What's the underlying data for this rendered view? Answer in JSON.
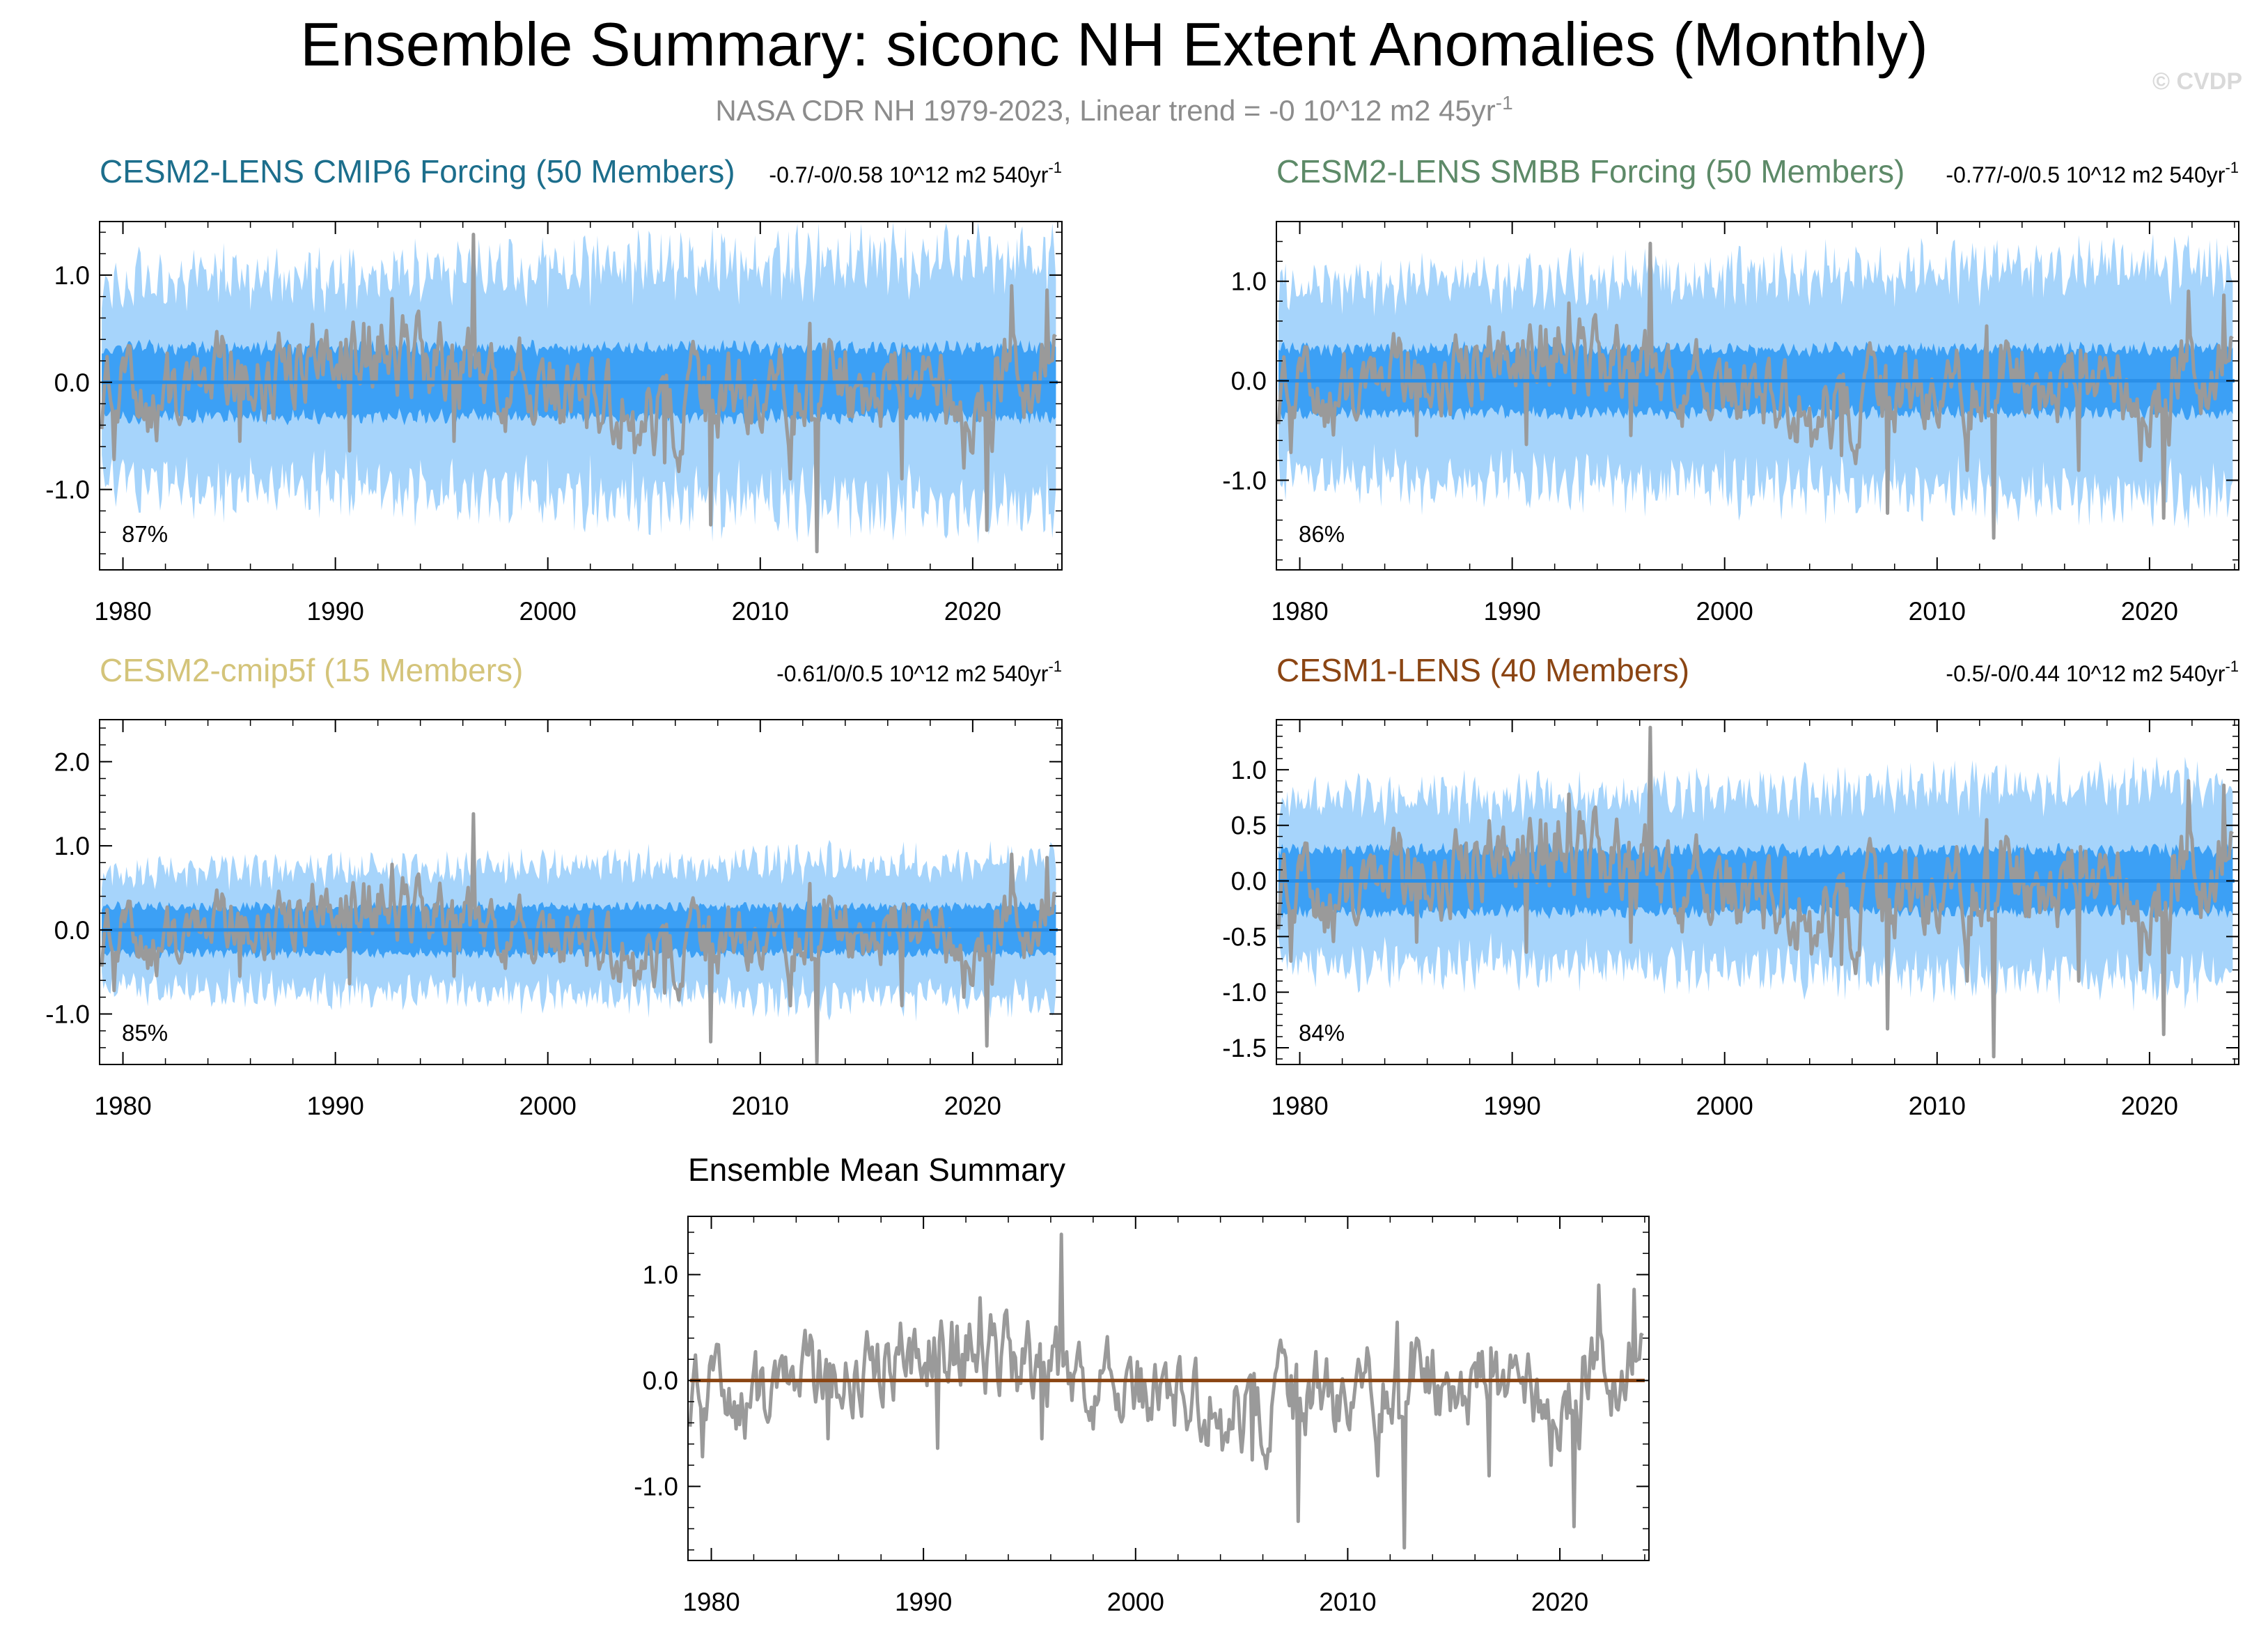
{
  "figure": {
    "title": "Ensemble Summary: siconc NH Extent Anomalies (Monthly)",
    "subtitle": "NASA CDR NH 1979-2023, Linear trend = -0 10^12 m2 45yr",
    "subtitle_sup": "-1",
    "copyright": "© CVDP"
  },
  "colors": {
    "observed": "#9a9a9a",
    "ensemble_mean": "#2a8fe8",
    "range_inner": "#3ca0f5",
    "range_outer": "#a6d4fb",
    "mean_summary_line": "#8b4513"
  },
  "chart_data": [
    {
      "type": "line",
      "id": "cmip6",
      "title": "CESM2-LENS CMIP6 Forcing (50 Members)",
      "title_color": "#1c6e8c",
      "trend_text": "-0.7/-0/0.58 10^12 m2 540yr",
      "trend_sup": "-1",
      "percent_label": "87%",
      "x_range": [
        1978.9,
        2024.2
      ],
      "ylim": [
        -1.75,
        1.5
      ],
      "yticks": [
        -1.0,
        0.0,
        1.0
      ],
      "ytick_labels": [
        "-1.0",
        "0.0",
        "1.0"
      ],
      "xticks": [
        1980,
        1990,
        2000,
        2010,
        2020
      ],
      "xtick_labels": [
        "1980",
        "1990",
        "2000",
        "2010",
        "2020"
      ],
      "series": [
        {
          "name": "observed",
          "kind": "line"
        },
        {
          "name": "ensemble mean",
          "kind": "line",
          "value": 0.0
        },
        {
          "name": "ensemble spread",
          "kind": "band",
          "inner_amplitude": 0.35,
          "outer_amplitude": 1.05
        }
      ]
    },
    {
      "type": "line",
      "id": "smbb",
      "title": "CESM2-LENS SMBB Forcing (50 Members)",
      "title_color": "#5d8a68",
      "trend_text": "-0.77/-0/0.5 10^12 m2 540yr",
      "trend_sup": "-1",
      "percent_label": "86%",
      "x_range": [
        1978.9,
        2024.2
      ],
      "ylim": [
        -1.9,
        1.6
      ],
      "yticks": [
        -1.0,
        0.0,
        1.0
      ],
      "ytick_labels": [
        "-1.0",
        "0.0",
        "1.0"
      ],
      "xticks": [
        1980,
        1990,
        2000,
        2010,
        2020
      ],
      "xtick_labels": [
        "1980",
        "1990",
        "2000",
        "2010",
        "2020"
      ],
      "series": [
        {
          "name": "observed",
          "kind": "line"
        },
        {
          "name": "ensemble mean",
          "kind": "line",
          "value": 0.0
        },
        {
          "name": "ensemble spread",
          "kind": "band",
          "inner_amplitude": 0.35,
          "outer_amplitude": 1.05
        }
      ]
    },
    {
      "type": "line",
      "id": "cmip5f",
      "title": "CESM2-cmip5f (15 Members)",
      "title_color": "#d4c47a",
      "trend_text": "-0.61/0/0.5 10^12 m2 540yr",
      "trend_sup": "-1",
      "percent_label": "85%",
      "x_range": [
        1978.9,
        2024.2
      ],
      "ylim": [
        -1.6,
        2.5
      ],
      "yticks": [
        -1.0,
        0.0,
        1.0,
        2.0
      ],
      "ytick_labels": [
        "-1.0",
        "0.0",
        "1.0",
        "2.0"
      ],
      "xticks": [
        1980,
        1990,
        2000,
        2010,
        2020
      ],
      "xtick_labels": [
        "1980",
        "1990",
        "2000",
        "2010",
        "2020"
      ],
      "series": [
        {
          "name": "observed",
          "kind": "line"
        },
        {
          "name": "ensemble mean",
          "kind": "line",
          "value": 0.0
        },
        {
          "name": "ensemble spread",
          "kind": "band",
          "inner_amplitude": 0.3,
          "outer_amplitude": 0.75
        }
      ]
    },
    {
      "type": "line",
      "id": "lens1",
      "title": "CESM1-LENS (40 Members)",
      "title_color": "#8b4513",
      "trend_text": "-0.5/-0/0.44 10^12 m2 540yr",
      "trend_sup": "-1",
      "percent_label": "84%",
      "x_range": [
        1978.9,
        2024.2
      ],
      "ylim": [
        -1.65,
        1.45
      ],
      "yticks": [
        -1.5,
        -1.0,
        -0.5,
        0.0,
        0.5,
        1.0
      ],
      "ytick_labels": [
        "-1.5",
        "-1.0",
        "-0.5",
        "0.0",
        "0.5",
        "1.0"
      ],
      "xticks": [
        1980,
        1990,
        2000,
        2010,
        2020
      ],
      "xtick_labels": [
        "1980",
        "1990",
        "2000",
        "2010",
        "2020"
      ],
      "series": [
        {
          "name": "observed",
          "kind": "line"
        },
        {
          "name": "ensemble mean",
          "kind": "line",
          "value": 0.0
        },
        {
          "name": "ensemble spread",
          "kind": "band",
          "inner_amplitude": 0.3,
          "outer_amplitude": 0.8
        }
      ]
    },
    {
      "type": "line",
      "id": "mean",
      "title": "Ensemble Mean Summary",
      "title_color": "#000000",
      "trend_text": "",
      "trend_sup": "",
      "percent_label": "",
      "x_range": [
        1978.9,
        2024.2
      ],
      "ylim": [
        -1.7,
        1.55
      ],
      "yticks": [
        -1.0,
        0.0,
        1.0
      ],
      "ytick_labels": [
        "-1.0",
        "0.0",
        "1.0"
      ],
      "xticks": [
        1980,
        1990,
        2000,
        2010,
        2020
      ],
      "xtick_labels": [
        "1980",
        "1990",
        "2000",
        "2010",
        "2020"
      ],
      "series": [
        {
          "name": "observed",
          "kind": "line"
        },
        {
          "name": "ensemble mean",
          "kind": "line",
          "value": 0.0
        }
      ]
    }
  ]
}
